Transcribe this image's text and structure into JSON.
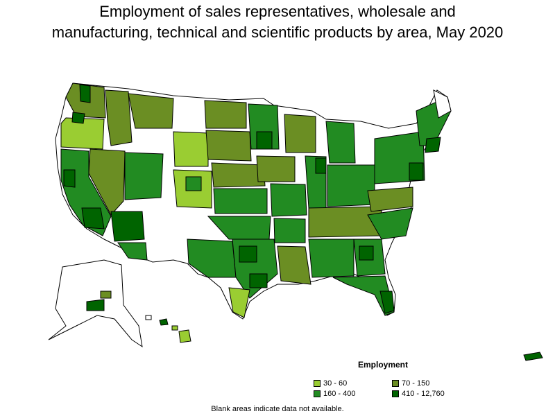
{
  "title_line1": "Employment of sales representatives, wholesale and",
  "title_line2": "manufacturing, technical and scientific products by area, May 2020",
  "legend": {
    "title": "Employment",
    "items": [
      {
        "label": "30 - 60",
        "color": "#9acd32"
      },
      {
        "label": "70 - 150",
        "color": "#6b8e23"
      },
      {
        "label": "160 - 400",
        "color": "#228b22"
      },
      {
        "label": "410 - 12,760",
        "color": "#006400"
      }
    ]
  },
  "footnote": "Blank areas indicate data not available.",
  "colors": {
    "border": "#000000",
    "no_data": "#ffffff"
  }
}
